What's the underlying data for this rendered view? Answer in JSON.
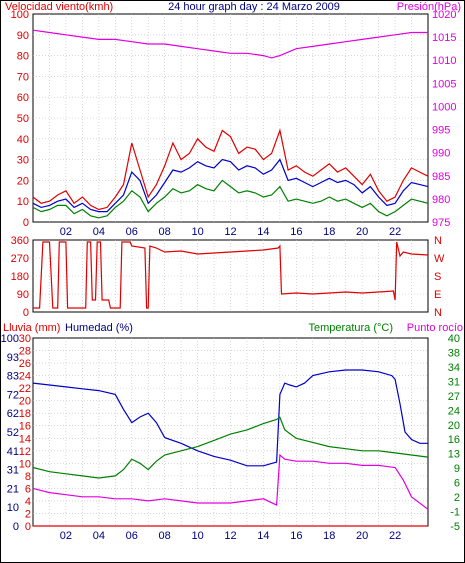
{
  "colors": {
    "red": "#e00000",
    "blue": "#0000c8",
    "green": "#008000",
    "magenta": "#e000e0",
    "dark": "#000080",
    "grid": "#c0c0c0",
    "frame": "#000000"
  },
  "chart_data": [
    {
      "id": "wind-pressure",
      "type": "line",
      "title": "24 hour graph day : 24 Marzo 2009",
      "ylabel_left": "Velocidad viento(kmh)",
      "ylabel_right": "Presión(hPa)",
      "x_ticks": [
        "02",
        "04",
        "06",
        "08",
        "10",
        "12",
        "14",
        "16",
        "18",
        "20",
        "22"
      ],
      "xlim": [
        0,
        24
      ],
      "ylim_left": [
        0,
        100
      ],
      "ylim_right": [
        975,
        1020
      ],
      "yticks_left": [
        "0",
        "10",
        "20",
        "30",
        "40",
        "50",
        "60",
        "70",
        "80",
        "90",
        "100"
      ],
      "yticks_right": [
        "975",
        "980",
        "985",
        "990",
        "995",
        "1000",
        "1005",
        "1010",
        "1015",
        "1020"
      ],
      "grid": true,
      "series": [
        {
          "axis": "right",
          "color": "magenta",
          "x": [
            0,
            1,
            2,
            3,
            4,
            5,
            6,
            7,
            8,
            9,
            10,
            11,
            12,
            13,
            14,
            14.5,
            15,
            16,
            17,
            18,
            19,
            20,
            21,
            22,
            23,
            24
          ],
          "values": [
            1016.5,
            1016,
            1015.5,
            1015,
            1014.5,
            1014.5,
            1014,
            1013.5,
            1013.5,
            1013,
            1012.5,
            1012,
            1011.5,
            1011.5,
            1011,
            1010.5,
            1011,
            1012.5,
            1013,
            1013.5,
            1014,
            1014.5,
            1015,
            1015.5,
            1016,
            1016
          ]
        },
        {
          "axis": "left",
          "color": "red",
          "x": [
            0,
            0.5,
            1,
            1.5,
            2,
            2.5,
            3,
            3.5,
            4,
            4.5,
            5,
            5.5,
            6,
            6.5,
            7,
            7.5,
            8,
            8.5,
            9,
            9.5,
            10,
            10.5,
            11,
            11.5,
            12,
            12.5,
            13,
            13.5,
            14,
            14.5,
            15,
            15.5,
            16,
            16.5,
            17,
            17.5,
            18,
            18.5,
            19,
            19.5,
            20,
            20.5,
            21,
            21.5,
            22,
            22.5,
            23,
            23.5,
            24
          ],
          "values": [
            12,
            9,
            10,
            13,
            15,
            9,
            12,
            8,
            6,
            7,
            12,
            18,
            38,
            25,
            12,
            18,
            27,
            38,
            30,
            33,
            40,
            36,
            34,
            44,
            41,
            33,
            36,
            35,
            30,
            33,
            44,
            25,
            27,
            24,
            22,
            25,
            28,
            24,
            26,
            22,
            18,
            23,
            15,
            10,
            12,
            20,
            26,
            24,
            22
          ]
        },
        {
          "axis": "left",
          "color": "blue",
          "x": [
            0,
            0.5,
            1,
            1.5,
            2,
            2.5,
            3,
            3.5,
            4,
            4.5,
            5,
            5.5,
            6,
            6.5,
            7,
            7.5,
            8,
            8.5,
            9,
            9.5,
            10,
            10.5,
            11,
            11.5,
            12,
            12.5,
            13,
            13.5,
            14,
            14.5,
            15,
            15.5,
            16,
            16.5,
            17,
            17.5,
            18,
            18.5,
            19,
            19.5,
            20,
            20.5,
            21,
            21.5,
            22,
            22.5,
            23,
            23.5,
            24
          ],
          "values": [
            9,
            7,
            8,
            10,
            11,
            7,
            9,
            6,
            5,
            5,
            9,
            13,
            24,
            20,
            9,
            13,
            19,
            25,
            24,
            26,
            29,
            27,
            26,
            30,
            29,
            25,
            27,
            26,
            23,
            25,
            30,
            20,
            21,
            19,
            17,
            19,
            21,
            19,
            20,
            18,
            14,
            17,
            12,
            8,
            9,
            15,
            19,
            18,
            17
          ]
        },
        {
          "axis": "left",
          "color": "green",
          "x": [
            0,
            0.5,
            1,
            1.5,
            2,
            2.5,
            3,
            3.5,
            4,
            4.5,
            5,
            5.5,
            6,
            6.5,
            7,
            7.5,
            8,
            8.5,
            9,
            9.5,
            10,
            10.5,
            11,
            11.5,
            12,
            12.5,
            13,
            13.5,
            14,
            14.5,
            15,
            15.5,
            16,
            16.5,
            17,
            17.5,
            18,
            18.5,
            19,
            19.5,
            20,
            20.5,
            21,
            21.5,
            22,
            22.5,
            23,
            23.5,
            24
          ],
          "values": [
            7,
            5,
            6,
            8,
            8,
            4,
            6,
            3,
            2,
            3,
            7,
            10,
            15,
            12,
            5,
            9,
            12,
            16,
            14,
            15,
            18,
            16,
            15,
            20,
            17,
            14,
            15,
            14,
            12,
            13,
            17,
            10,
            11,
            10,
            9,
            10,
            12,
            10,
            11,
            9,
            7,
            9,
            5,
            3,
            5,
            8,
            11,
            10,
            9
          ]
        }
      ]
    },
    {
      "id": "wind-direction",
      "type": "line",
      "xlim": [
        0,
        24
      ],
      "ylim_left": [
        0,
        360
      ],
      "yticks_left": [
        "0",
        "90",
        "180",
        "270",
        "360"
      ],
      "yticks_right": [
        "N",
        "E",
        "S",
        "W",
        "N"
      ],
      "grid": true,
      "series": [
        {
          "axis": "left",
          "color": "red",
          "x": [
            0,
            0.4,
            0.6,
            1.0,
            1.2,
            1.5,
            1.6,
            2.0,
            2.1,
            3.2,
            3.3,
            3.5,
            3.6,
            3.8,
            3.9,
            4.1,
            4.2,
            4.6,
            4.7,
            5.3,
            5.4,
            5.9,
            6.0,
            6.8,
            6.9,
            7.0,
            7.1,
            7.5,
            8,
            9,
            10,
            11,
            12,
            13,
            14,
            14.9,
            15.0,
            15.1,
            16,
            17,
            18,
            19,
            20,
            21,
            21.9,
            22.0,
            22.1,
            22.3,
            22.5,
            23,
            24
          ],
          "values": [
            20,
            20,
            350,
            350,
            20,
            20,
            350,
            350,
            20,
            20,
            350,
            350,
            60,
            60,
            350,
            350,
            60,
            60,
            20,
            20,
            350,
            350,
            330,
            320,
            20,
            20,
            330,
            320,
            300,
            305,
            290,
            295,
            300,
            305,
            310,
            320,
            330,
            90,
            95,
            90,
            95,
            100,
            95,
            100,
            105,
            60,
            350,
            280,
            300,
            290,
            285
          ]
        }
      ]
    },
    {
      "id": "rain-hum-temp",
      "type": "line",
      "ylabel_left_rain": "Lluvia (mm)",
      "ylabel_left_hum": "Humedad (%)",
      "ylabel_right_temp": "Temperatura (°C)",
      "ylabel_right_dew": "Punto rocío",
      "x_ticks": [
        "02",
        "04",
        "06",
        "08",
        "10",
        "12",
        "14",
        "16",
        "18",
        "20",
        "22"
      ],
      "xlim": [
        0,
        24
      ],
      "yticks_rain": [
        "0",
        "2",
        "4",
        "6",
        "8",
        "10",
        "12",
        "14",
        "16",
        "18",
        "20",
        "22",
        "24",
        "26",
        "28",
        "30"
      ],
      "yticks_hum": [
        "0",
        "10",
        "21",
        "31",
        "41",
        "52",
        "62",
        "72",
        "83",
        "93",
        "100"
      ],
      "yticks_temp": [
        "-5",
        "-1",
        "2",
        "6",
        "9",
        "13",
        "16",
        "20",
        "24",
        "27",
        "31",
        "34",
        "38",
        "40"
      ],
      "ylim_left": [
        0,
        100
      ],
      "ylim_right": [
        -5,
        40
      ],
      "grid": true,
      "series": [
        {
          "name": "Humedad (%)",
          "axis": "left",
          "color": "blue",
          "x": [
            0,
            1,
            2,
            3,
            4,
            5,
            5.5,
            6,
            6.5,
            7,
            7.5,
            8,
            9,
            10,
            11,
            12,
            13,
            14,
            14.8,
            15,
            15.3,
            15.6,
            16,
            16.5,
            17,
            18,
            19,
            20,
            21,
            21.8,
            22,
            22.3,
            22.6,
            23,
            23.5,
            24
          ],
          "values": [
            76,
            75,
            74,
            73,
            72,
            70,
            62,
            55,
            58,
            60,
            55,
            47,
            44,
            40,
            37,
            35,
            32,
            32,
            34,
            70,
            76,
            75,
            74,
            76,
            80,
            82,
            83,
            83,
            82,
            80,
            78,
            65,
            50,
            46,
            44,
            44
          ]
        },
        {
          "name": "Temperatura (°C)",
          "axis": "right",
          "color": "green",
          "x": [
            0,
            1,
            2,
            3,
            4,
            5,
            5.5,
            6,
            6.5,
            7,
            7.5,
            8,
            9,
            10,
            11,
            12,
            13,
            14,
            14.8,
            15,
            15.3,
            16,
            17,
            18,
            19,
            20,
            21,
            22,
            23,
            24
          ],
          "values": [
            9,
            8,
            7.5,
            7,
            6.5,
            7,
            8.5,
            11,
            10,
            8.5,
            10.5,
            12,
            13,
            14,
            15.5,
            17,
            18,
            19.5,
            20.5,
            21,
            18,
            16,
            15,
            14,
            13.5,
            13,
            13,
            12.5,
            12,
            11.5
          ]
        },
        {
          "name": "Punto rocío",
          "axis": "right",
          "color": "magenta",
          "x": [
            0,
            1,
            2,
            3,
            4,
            5,
            6,
            7,
            8,
            9,
            10,
            11,
            12,
            13,
            14,
            14.8,
            15,
            15.3,
            16,
            17,
            18,
            19,
            20,
            21,
            22,
            22.5,
            23,
            24
          ],
          "values": [
            4,
            3,
            2.5,
            2,
            2,
            1.5,
            1.5,
            1,
            1.5,
            1,
            0.5,
            0.5,
            0.5,
            1,
            1.5,
            0,
            12,
            11,
            10.5,
            10.5,
            10,
            10,
            9.5,
            9.5,
            9,
            6,
            2,
            -1
          ]
        },
        {
          "name": "Lluvia (mm)",
          "axis": "rain",
          "color": "red",
          "x": [
            0,
            24
          ],
          "values": [
            0,
            0
          ]
        }
      ]
    }
  ]
}
